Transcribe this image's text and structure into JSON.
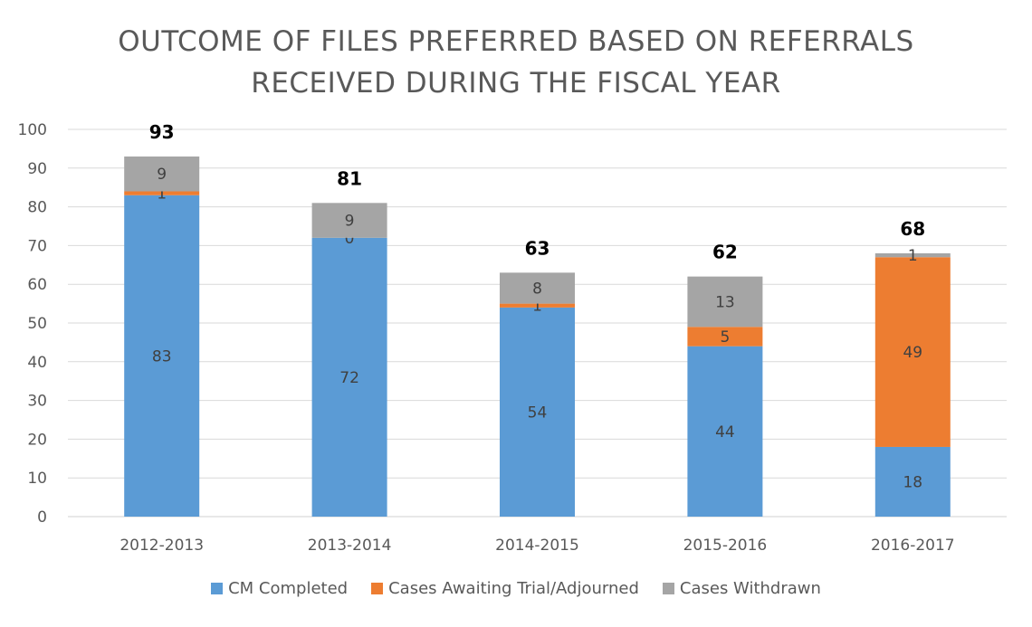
{
  "chart_data": {
    "type": "bar",
    "stacked": true,
    "title": "OUTCOME OF FILES PREFERRED BASED ON REFERRALS RECEIVED DURING THE FISCAL YEAR",
    "title_lines": [
      "OUTCOME OF FILES PREFERRED BASED ON REFERRALS",
      "RECEIVED DURING THE FISCAL YEAR"
    ],
    "categories": [
      "2012-2013",
      "2013-2014",
      "2014-2015",
      "2015-2016",
      "2016-2017"
    ],
    "series": [
      {
        "name": "CM Completed",
        "color": "#5b9bd5",
        "values": [
          83,
          72,
          54,
          44,
          18
        ]
      },
      {
        "name": "Cases Awaiting Trial/Adjourned",
        "color": "#ed7d31",
        "values": [
          1,
          0,
          1,
          5,
          49
        ]
      },
      {
        "name": "Cases Withdrawn",
        "color": "#a5a5a5",
        "values": [
          9,
          9,
          8,
          13,
          1
        ]
      }
    ],
    "totals": [
      93,
      81,
      63,
      62,
      68
    ],
    "ylim": [
      0,
      100
    ],
    "yticks": [
      0,
      10,
      20,
      30,
      40,
      50,
      60,
      70,
      80,
      90,
      100
    ],
    "xlabel": "",
    "ylabel": "",
    "grid": true,
    "legend_position": "bottom"
  }
}
